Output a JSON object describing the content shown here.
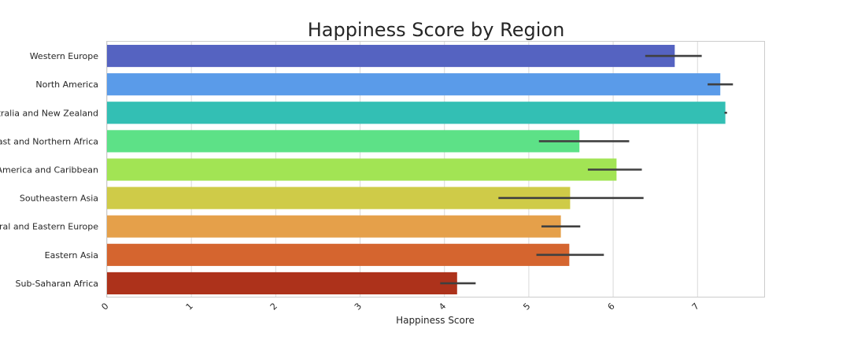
{
  "chart_data": {
    "type": "bar",
    "orientation": "horizontal",
    "title": "Happiness Score by Region",
    "xlabel": "Happiness Score",
    "ylabel": "",
    "xlim": [
      0,
      7.8
    ],
    "xticks": [
      "0",
      "1",
      "2",
      "3",
      "4",
      "5",
      "6",
      "7"
    ],
    "grid": true,
    "categories": [
      "Western Europe",
      "North America",
      "Australia and New Zealand",
      "Middle East and Northern Africa",
      "Latin America and Caribbean",
      "Southeastern Asia",
      "Central and Eastern Europe",
      "Eastern Asia",
      "Sub-Saharan Africa"
    ],
    "values": [
      6.73,
      7.27,
      7.33,
      5.6,
      6.04,
      5.49,
      5.38,
      5.48,
      4.15
    ],
    "error_low": [
      6.38,
      7.12,
      7.32,
      5.12,
      5.7,
      4.64,
      5.15,
      5.09,
      3.95
    ],
    "error_high": [
      7.05,
      7.42,
      7.35,
      6.19,
      6.34,
      6.36,
      5.61,
      5.89,
      4.37
    ],
    "colors": [
      "#5563c1",
      "#5a9be9",
      "#33bfb4",
      "#5de187",
      "#a2e454",
      "#cfcb48",
      "#e5a04a",
      "#d5652f",
      "#ad321b"
    ]
  }
}
